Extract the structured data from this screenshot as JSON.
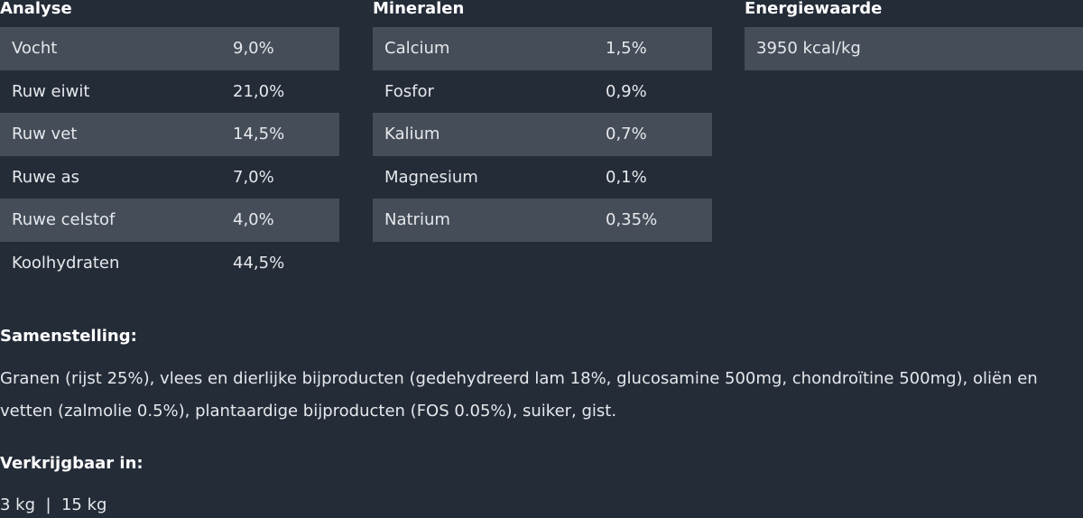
{
  "analyse": {
    "title": "Analyse",
    "rows": [
      {
        "label": "Vocht",
        "value": "9,0%"
      },
      {
        "label": "Ruw eiwit",
        "value": "21,0%"
      },
      {
        "label": "Ruw vet",
        "value": "14,5%"
      },
      {
        "label": "Ruwe as",
        "value": "7,0%"
      },
      {
        "label": "Ruwe celstof",
        "value": "4,0%"
      },
      {
        "label": "Koolhydraten",
        "value": "44,5%"
      }
    ]
  },
  "mineralen": {
    "title": "Mineralen",
    "rows": [
      {
        "label": "Calcium",
        "value": "1,5%"
      },
      {
        "label": "Fosfor",
        "value": "0,9%"
      },
      {
        "label": "Kalium",
        "value": "0,7%"
      },
      {
        "label": "Magnesium",
        "value": "0,1%"
      },
      {
        "label": "Natrium",
        "value": "0,35%"
      }
    ]
  },
  "energie": {
    "title": "Energiewaarde",
    "value": "3950 kcal/kg"
  },
  "samenstelling": {
    "title": "Samenstelling:",
    "text": "Granen (rijst 25%), vlees en dierlijke bijproducten (gedehydreerd lam 18%,  glucosamine 500mg, chondroïtine 500mg), oliën en vetten (zalmolie 0.5%), plantaardige bijproducten (FOS 0.05%), suiker, gist."
  },
  "verkrijgbaar": {
    "title": "Verkrijgbaar in:",
    "sizes": "3 kg  |  15 kg"
  }
}
